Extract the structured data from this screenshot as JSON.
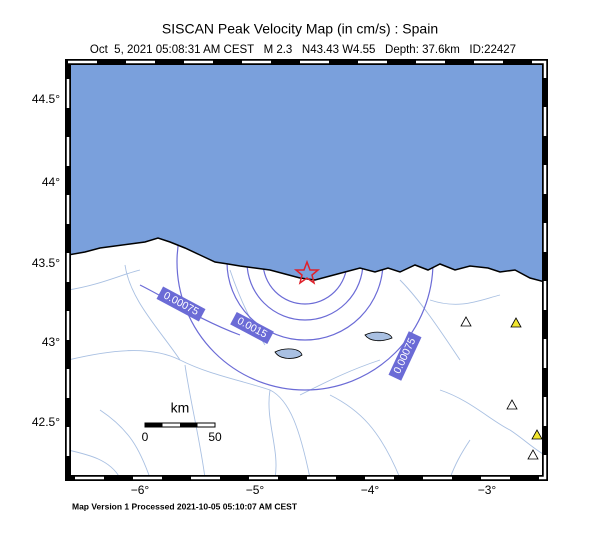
{
  "header": {
    "title": "SISCAN Peak Velocity Map (in cm/s) : Spain",
    "subtitle": "Oct  5, 2021 05:08:31 AM CEST   M 2.3   N43.43 W4.55   Depth: 37.6km   ID:22427"
  },
  "axes": {
    "lat_labels": [
      "44.5°",
      "44°",
      "43.5°",
      "43°",
      "42.5°"
    ],
    "lon_labels": [
      "−6°",
      "−5°",
      "−4°",
      "−3°"
    ]
  },
  "contours": {
    "labels": [
      "0.00075",
      "0.0015",
      "0.00075"
    ]
  },
  "scale": {
    "unit": "km",
    "start": "0",
    "end": "50"
  },
  "footer": "Map Version 1 Processed 2021-10-05 05:10:07 AM CEST"
}
